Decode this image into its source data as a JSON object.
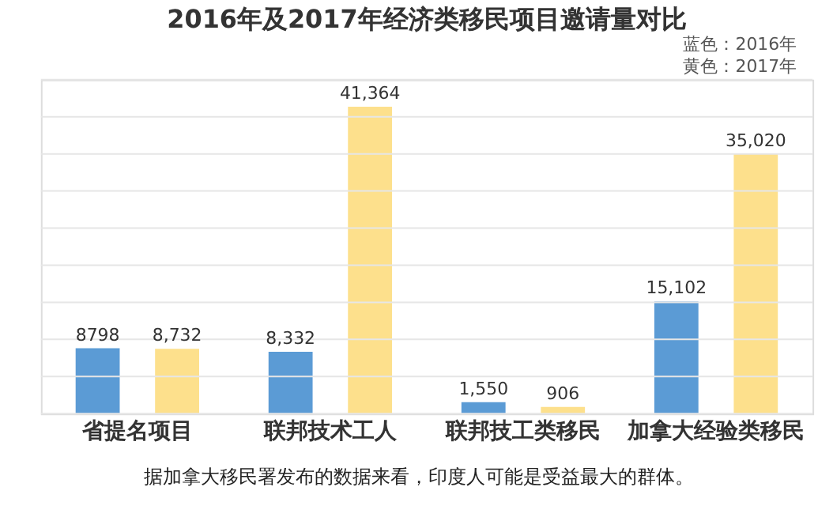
{
  "chart_data": {
    "type": "bar",
    "title": "2016年及2017年经济类移民项目邀请量对比",
    "categories": [
      "省提名项目",
      "联邦技术工人",
      "联邦技工类移民",
      "加拿大经验类移民"
    ],
    "series": [
      {
        "color": "#5b9bd5",
        "values": [
          8798,
          8332,
          1550,
          15102
        ],
        "value_labels": [
          "8798",
          "8,332",
          "1,550",
          "15,102"
        ]
      },
      {
        "color": "#fde08c",
        "values": [
          8732,
          41364,
          906,
          35020
        ],
        "value_labels": [
          "8,732",
          "41,364",
          "906",
          "35,020"
        ]
      }
    ],
    "ylim": [
      0,
      45000
    ],
    "yticks": [
      {
        "value": 0,
        "label": null
      },
      {
        "value": 5000,
        "label": null
      },
      {
        "value": 10000,
        "label": null
      },
      {
        "value": 15000,
        "label": null
      },
      {
        "value": 20000,
        "label": null
      },
      {
        "value": 25000,
        "label": null
      },
      {
        "value": 30000,
        "label": null
      },
      {
        "value": 35000,
        "label": null
      },
      {
        "value": 40000,
        "label": null
      },
      {
        "value": 45000,
        "label": null
      }
    ],
    "grid": "y",
    "tick_labels": "x",
    "legend": false,
    "annotations": [
      "蓝色：2016年",
      "黄色：2017年",
      "据加拿大移民署发布的数据来看，印度人可能是受益最大的群体。"
    ]
  }
}
